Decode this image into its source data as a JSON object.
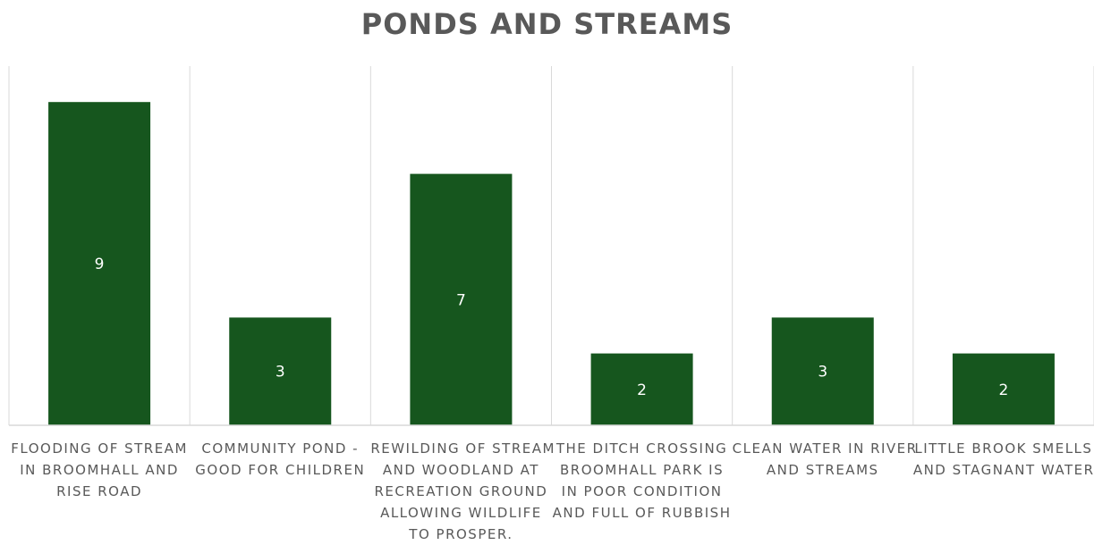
{
  "chart_data": {
    "type": "bar",
    "title": "PONDS AND STREAMS",
    "categories": [
      [
        "FLOODING OF STREAM",
        "IN BROOMHALL AND",
        "RISE ROAD"
      ],
      [
        "COMMUNITY POND -",
        "GOOD FOR CHILDREN"
      ],
      [
        "REWILDING OF STREAM",
        "AND WOODLAND AT",
        "RECREATION GROUND",
        "ALLOWING WILDLIFE",
        "TO PROSPER."
      ],
      [
        "THE DITCH CROSSING",
        "BROOMHALL PARK IS",
        "IN POOR CONDITION",
        "AND FULL OF RUBBISH"
      ],
      [
        "CLEAN WATER IN RIVER",
        "AND STREAMS"
      ],
      [
        "LITTLE BROOK SMELLS",
        "AND STAGNANT WATER"
      ]
    ],
    "values": [
      9,
      3,
      7,
      2,
      3,
      2
    ],
    "data_labels": [
      "9",
      "3",
      "7",
      "2",
      "3",
      "2"
    ],
    "ylim": [
      0,
      10
    ],
    "grid": false,
    "colors": {
      "bar": "#16561E",
      "label": "#ffffff",
      "axis": "#d9d9d9",
      "text": "#595959"
    }
  }
}
